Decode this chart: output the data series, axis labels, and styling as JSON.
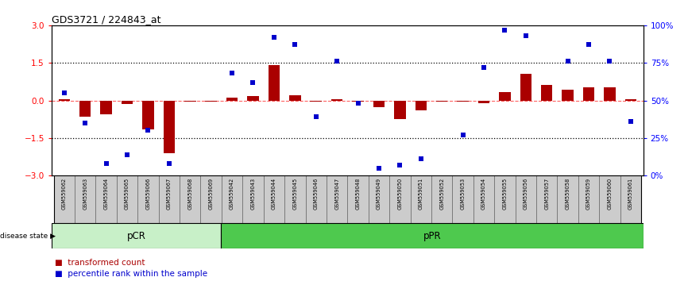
{
  "title": "GDS3721 / 224843_at",
  "samples": [
    "GSM559062",
    "GSM559063",
    "GSM559064",
    "GSM559065",
    "GSM559066",
    "GSM559067",
    "GSM559068",
    "GSM559069",
    "GSM559042",
    "GSM559043",
    "GSM559044",
    "GSM559045",
    "GSM559046",
    "GSM559047",
    "GSM559048",
    "GSM559049",
    "GSM559050",
    "GSM559051",
    "GSM559052",
    "GSM559053",
    "GSM559054",
    "GSM559055",
    "GSM559056",
    "GSM559057",
    "GSM559058",
    "GSM559059",
    "GSM559060",
    "GSM559061"
  ],
  "transformed_count": [
    0.05,
    -0.65,
    -0.55,
    -0.15,
    -1.15,
    -2.1,
    -0.05,
    -0.05,
    0.1,
    0.18,
    1.4,
    0.22,
    -0.05,
    0.05,
    -0.05,
    -0.28,
    -0.75,
    -0.38,
    -0.05,
    -0.05,
    -0.12,
    0.32,
    1.05,
    0.62,
    0.42,
    0.52,
    0.52,
    0.05
  ],
  "percentile_rank": [
    55,
    35,
    8,
    14,
    30,
    8,
    null,
    null,
    68,
    62,
    92,
    87,
    39,
    76,
    48,
    5,
    7,
    11,
    null,
    27,
    72,
    97,
    93,
    null,
    76,
    87,
    76,
    36
  ],
  "pcr_count": 8,
  "bar_color": "#AA0000",
  "dot_color": "#0000CC",
  "ylim": [
    -3,
    3
  ],
  "y2lim": [
    0,
    100
  ],
  "yticks_left": [
    -3,
    -1.5,
    0,
    1.5,
    3
  ],
  "yticks_right": [
    0,
    25,
    50,
    75,
    100
  ],
  "ytick_right_labels": [
    "0%",
    "25%",
    "50%",
    "75%",
    "100%"
  ],
  "dotted_line_vals": [
    1.5,
    -1.5
  ],
  "zero_line_color": "#FF4444",
  "pcr_color": "#c8f0c8",
  "ppr_color": "#4ec94e",
  "pcr_label": "pCR",
  "ppr_label": "pPR",
  "disease_state_label": "disease state",
  "legend_items": [
    "transformed count",
    "percentile rank within the sample"
  ],
  "cell_color": "#cccccc",
  "cell_edge_color": "#666666"
}
